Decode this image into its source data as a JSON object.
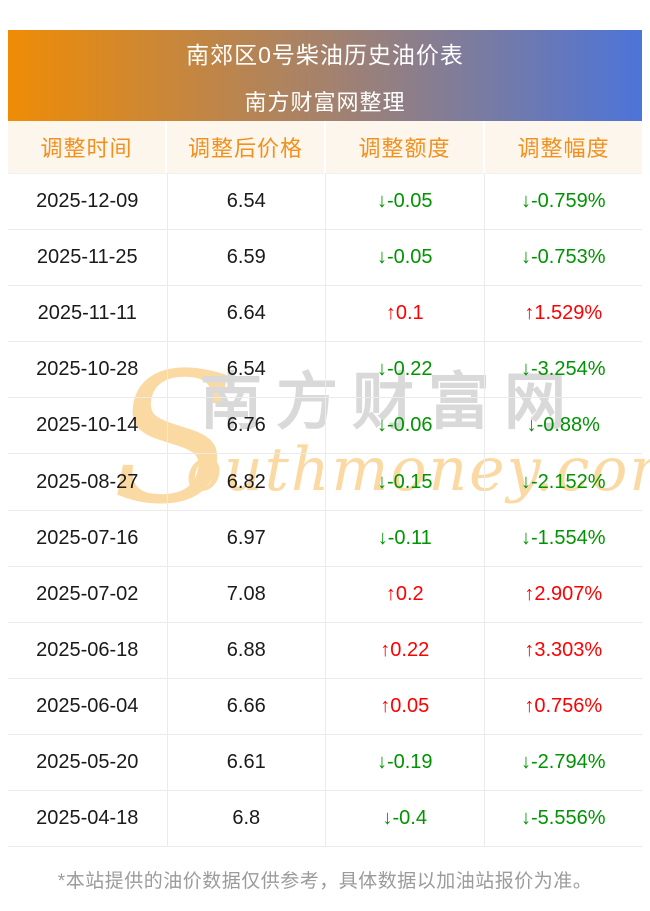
{
  "banner": {
    "title": "南郊区0号柴油历史油价表",
    "subtitle": "南方财富网整理"
  },
  "table": {
    "headers": [
      "调整时间",
      "调整后价格",
      "调整额度",
      "调整幅度"
    ],
    "rows": [
      {
        "date": "2025-12-09",
        "price": "6.54",
        "change": "↓-0.05",
        "pct": "↓-0.759%",
        "trend": "down"
      },
      {
        "date": "2025-11-25",
        "price": "6.59",
        "change": "↓-0.05",
        "pct": "↓-0.753%",
        "trend": "down"
      },
      {
        "date": "2025-11-11",
        "price": "6.64",
        "change": "↑0.1",
        "pct": "↑1.529%",
        "trend": "up"
      },
      {
        "date": "2025-10-28",
        "price": "6.54",
        "change": "↓-0.22",
        "pct": "↓-3.254%",
        "trend": "down"
      },
      {
        "date": "2025-10-14",
        "price": "6.76",
        "change": "↓-0.06",
        "pct": "↓-0.88%",
        "trend": "down"
      },
      {
        "date": "2025-08-27",
        "price": "6.82",
        "change": "↓-0.15",
        "pct": "↓-2.152%",
        "trend": "down"
      },
      {
        "date": "2025-07-16",
        "price": "6.97",
        "change": "↓-0.11",
        "pct": "↓-1.554%",
        "trend": "down"
      },
      {
        "date": "2025-07-02",
        "price": "7.08",
        "change": "↑0.2",
        "pct": "↑2.907%",
        "trend": "up"
      },
      {
        "date": "2025-06-18",
        "price": "6.88",
        "change": "↑0.22",
        "pct": "↑3.303%",
        "trend": "up"
      },
      {
        "date": "2025-06-04",
        "price": "6.66",
        "change": "↑0.05",
        "pct": "↑0.756%",
        "trend": "up"
      },
      {
        "date": "2025-05-20",
        "price": "6.61",
        "change": "↓-0.19",
        "pct": "↓-2.794%",
        "trend": "down"
      },
      {
        "date": "2025-04-18",
        "price": "6.8",
        "change": "↓-0.4",
        "pct": "↓-5.556%",
        "trend": "down"
      }
    ]
  },
  "watermark": {
    "big_letter": "S",
    "script_text": "outhmoney.com",
    "cjk_text": "南方财富网"
  },
  "footer": {
    "note": "*本站提供的油价数据仅供参考，具体数据以加油站报价为准。"
  },
  "colors": {
    "banner_gradient_start": "#ef8c05",
    "banner_gradient_end": "#4d74d9",
    "header_bg": "#fdf6ec",
    "header_text": "#f2901d",
    "up_red": "#fe0000",
    "down_green": "#009402",
    "body_text": "#1a1a1a",
    "divider": "#ebebeb",
    "footnote_gray": "#9b9b9b",
    "watermark_gray": "#d9d9d9",
    "watermark_orange": "#fbd9a3"
  }
}
